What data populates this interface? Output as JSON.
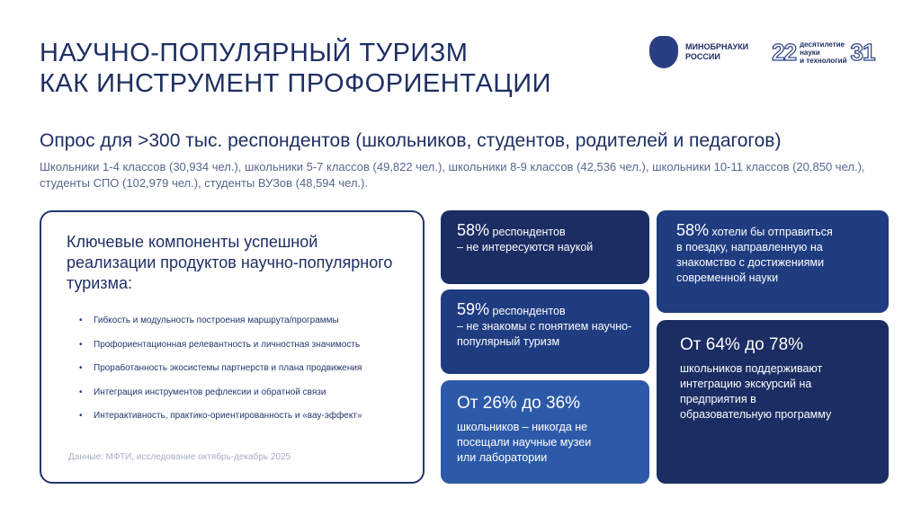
{
  "title": {
    "line1": "НАУЧНО-ПОПУЛЯРНЫЙ ТУРИЗМ",
    "line2": "КАК ИНСТРУМЕНТ ПРОФОРИЕНТАЦИИ"
  },
  "logos": {
    "ministry": "МИНОБРНАУКИ\nРОССИИ",
    "decade_left": "22",
    "decade_text": "десятилетие\nнауки\nи технологий",
    "decade_right": "31"
  },
  "survey": {
    "heading": "Опрос для >300 тыс. респондентов (школьников, студентов, родителей и педагогов)",
    "details": "Школьники 1-4 классов (30,934 чел.), школьники 5-7 классов (49,822 чел.), школьники 8-9 классов (42,536 чел.), школьники 10-11 классов (20,850 чел.), студенты СПО (102,979 чел.), студенты ВУЗов (48,594 чел.)."
  },
  "panel": {
    "heading": "Ключевые компоненты успешной реализации продуктов научно-популярного туризма:",
    "items": [
      "Гибкость и модульность построения маршрута/программы",
      "Профориентационная релевантность и личностная значимость",
      "Проработанность экосистемы партнерств и плана продвижения",
      "Интеграция инструментов рефлексии и обратной связи",
      "Интерактивность, практико-ориентированность и «вау-эффект»"
    ],
    "source": "Данные: МФТИ, исследование октябрь-декабрь 2025"
  },
  "cards": [
    {
      "pct": "58%",
      "text1": " респондентов",
      "text2": "– не интересуются наукой"
    },
    {
      "pct": "59%",
      "text1": " респондентов",
      "text2": "– не знакомы с понятием научно-популярный туризм"
    },
    {
      "lead": "От 26% до 36%",
      "text2": "школьников – никогда не посещали научные музеи или лаборатории"
    },
    {
      "pct": "58%",
      "text1": " хотели бы отправиться",
      "text2": "в поездку, направленную на знакомство с достижениями современной науки"
    },
    {
      "lead": "От 64% до 78%",
      "text2": "школьников поддерживают интеграцию экскурсий на предприятия в образовательную программу"
    }
  ],
  "colors": {
    "navy": "#1b2d63",
    "blue": "#1f3c80",
    "light_blue": "#2d5aa8"
  }
}
